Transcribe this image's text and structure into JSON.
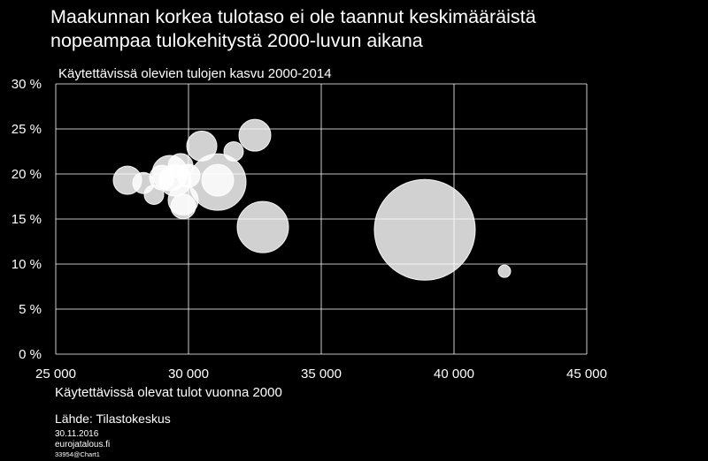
{
  "title_lines": [
    "Maakunnan korkea tulotaso ei ole taannut keskimääräistä",
    "nopeampaa tulokehitystä 2000-luvun aikana"
  ],
  "source": "Lähde: Tilastokeskus",
  "date": "30.11.2016",
  "site": "eurojatalous.fi",
  "code": "33954@Chart1",
  "colors": {
    "background": "#000000",
    "grid": "#ffffff",
    "bubble": "#ffffff",
    "text": "#ffffff"
  },
  "chart_data": {
    "type": "scatter",
    "title": "",
    "ylabel": "Käytettävissä olevien tulojen kasvu 2000-2014",
    "xlabel": "Käytettävissä olevat tulot vuonna 2000",
    "xlim": [
      25000,
      45000
    ],
    "ylim": [
      0,
      30
    ],
    "x_ticks": [
      25000,
      30000,
      35000,
      40000,
      45000
    ],
    "x_tick_labels": [
      "25 000",
      "30 000",
      "35 000",
      "40 000",
      "45 000"
    ],
    "y_ticks": [
      0,
      5,
      10,
      15,
      20,
      25,
      30
    ],
    "y_tick_labels": [
      "0 %",
      "5 %",
      "10 %",
      "15 %",
      "20 %",
      "25 %",
      "30 %"
    ],
    "grid": true,
    "bubble_sizes_relative": true,
    "points": [
      {
        "x": 27700,
        "y": 19.3,
        "size": 16
      },
      {
        "x": 28300,
        "y": 19.0,
        "size": 12
      },
      {
        "x": 28700,
        "y": 17.7,
        "size": 11
      },
      {
        "x": 29000,
        "y": 19.6,
        "size": 14
      },
      {
        "x": 29300,
        "y": 20.1,
        "size": 20
      },
      {
        "x": 29500,
        "y": 19.3,
        "size": 18
      },
      {
        "x": 29700,
        "y": 20.9,
        "size": 14
      },
      {
        "x": 29800,
        "y": 17.1,
        "size": 17
      },
      {
        "x": 29800,
        "y": 16.4,
        "size": 14
      },
      {
        "x": 30000,
        "y": 19.8,
        "size": 13
      },
      {
        "x": 30500,
        "y": 23.1,
        "size": 17
      },
      {
        "x": 31100,
        "y": 19.1,
        "size": 32
      },
      {
        "x": 31100,
        "y": 19.3,
        "size": 18
      },
      {
        "x": 31700,
        "y": 22.5,
        "size": 11
      },
      {
        "x": 32500,
        "y": 24.3,
        "size": 18
      },
      {
        "x": 32800,
        "y": 14.1,
        "size": 29
      },
      {
        "x": 38900,
        "y": 13.8,
        "size": 57
      },
      {
        "x": 41900,
        "y": 9.2,
        "size": 7
      }
    ]
  }
}
